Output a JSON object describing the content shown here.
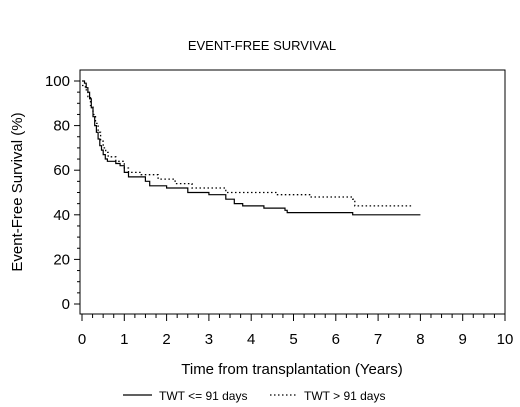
{
  "chart_data": {
    "type": "line",
    "title": "EVENT-FREE SURVIVAL",
    "xlabel": "Time from transplantation (Years)",
    "ylabel": "Event-Free Survival (%)",
    "xlim": [
      0,
      10
    ],
    "ylim": [
      0,
      100
    ],
    "xticks": [
      "0",
      "1",
      "2",
      "3",
      "4",
      "5",
      "6",
      "7",
      "8",
      "9",
      "10"
    ],
    "yticks": [
      "0",
      "20",
      "40",
      "60",
      "80",
      "100"
    ],
    "grid": false,
    "legend_position": "bottom",
    "series": [
      {
        "name": "TWT <= 91 days",
        "style": "solid",
        "color": "#000000",
        "points": [
          [
            0,
            100
          ],
          [
            0.06,
            99
          ],
          [
            0.1,
            97
          ],
          [
            0.14,
            95
          ],
          [
            0.18,
            92
          ],
          [
            0.22,
            88
          ],
          [
            0.26,
            84
          ],
          [
            0.3,
            80
          ],
          [
            0.34,
            77
          ],
          [
            0.38,
            74
          ],
          [
            0.42,
            71
          ],
          [
            0.46,
            69
          ],
          [
            0.5,
            67
          ],
          [
            0.55,
            65
          ],
          [
            0.6,
            64
          ],
          [
            0.8,
            63
          ],
          [
            0.9,
            62
          ],
          [
            1.0,
            59
          ],
          [
            1.1,
            57
          ],
          [
            1.5,
            55
          ],
          [
            1.6,
            53
          ],
          [
            2.0,
            52
          ],
          [
            2.5,
            50
          ],
          [
            3.0,
            49
          ],
          [
            3.4,
            47
          ],
          [
            3.6,
            45
          ],
          [
            3.8,
            44
          ],
          [
            4.3,
            43
          ],
          [
            4.8,
            42
          ],
          [
            4.85,
            41
          ],
          [
            6.4,
            40
          ],
          [
            8.0,
            40
          ]
        ]
      },
      {
        "name": "TWT > 91 days",
        "style": "dotted",
        "color": "#000000",
        "points": [
          [
            0,
            98
          ],
          [
            0.08,
            96
          ],
          [
            0.14,
            93
          ],
          [
            0.2,
            89
          ],
          [
            0.26,
            85
          ],
          [
            0.32,
            81
          ],
          [
            0.38,
            77
          ],
          [
            0.44,
            73
          ],
          [
            0.5,
            70
          ],
          [
            0.56,
            68
          ],
          [
            0.62,
            66
          ],
          [
            0.8,
            64
          ],
          [
            1.0,
            61
          ],
          [
            1.1,
            59
          ],
          [
            1.4,
            58
          ],
          [
            1.8,
            56
          ],
          [
            2.2,
            54
          ],
          [
            2.6,
            52
          ],
          [
            3.4,
            50
          ],
          [
            4.6,
            49
          ],
          [
            5.4,
            48
          ],
          [
            6.4,
            47
          ],
          [
            6.45,
            44
          ],
          [
            7.8,
            44
          ]
        ]
      }
    ]
  }
}
